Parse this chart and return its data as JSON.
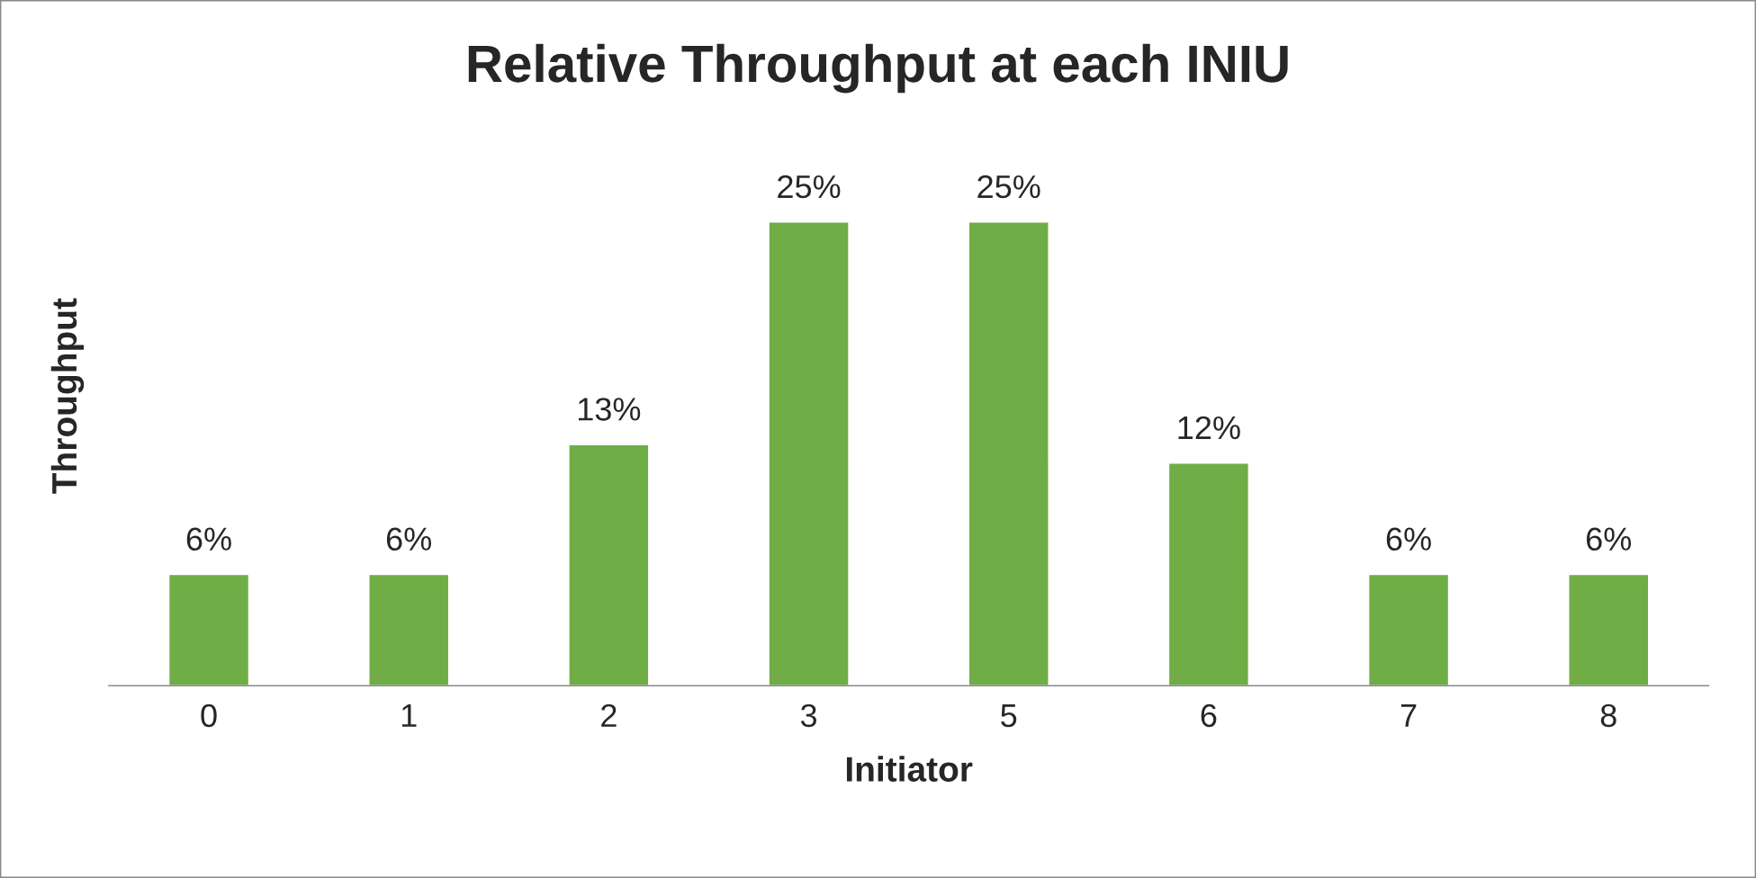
{
  "chart_data": {
    "type": "bar",
    "title": "Relative Throughput at each INIU",
    "xlabel": "Initiator",
    "ylabel": "Throughput",
    "categories": [
      "0",
      "1",
      "2",
      "3",
      "5",
      "6",
      "7",
      "8"
    ],
    "values": [
      6,
      6,
      13,
      25,
      25,
      12,
      6,
      6
    ],
    "value_labels": [
      "6%",
      "6%",
      "13%",
      "25%",
      "25%",
      "12%",
      "6%",
      "6%"
    ],
    "color": "#70ad47",
    "grid": false,
    "legend": false
  }
}
